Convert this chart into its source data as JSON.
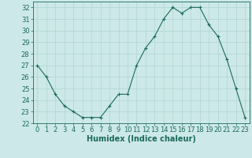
{
  "x": [
    0,
    1,
    2,
    3,
    4,
    5,
    6,
    7,
    8,
    9,
    10,
    11,
    12,
    13,
    14,
    15,
    16,
    17,
    18,
    19,
    20,
    21,
    22,
    23
  ],
  "y": [
    27,
    26,
    24.5,
    23.5,
    23,
    22.5,
    22.5,
    22.5,
    23.5,
    24.5,
    24.5,
    27,
    28.5,
    29.5,
    31,
    32,
    31.5,
    32,
    32,
    30.5,
    29.5,
    27.5,
    25,
    22.5
  ],
  "line_color": "#1a6b5a",
  "marker": "+",
  "marker_color": "#1a6b5a",
  "bg_color": "#cde8e8",
  "grid_color": "#b0d4d4",
  "xlabel": "Humidex (Indice chaleur)",
  "xlabel_fontsize": 7,
  "tick_fontsize": 6,
  "ylim": [
    22,
    32.5
  ],
  "yticks": [
    22,
    23,
    24,
    25,
    26,
    27,
    28,
    29,
    30,
    31,
    32
  ],
  "xlim": [
    -0.5,
    23.5
  ],
  "xticks": [
    0,
    1,
    2,
    3,
    4,
    5,
    6,
    7,
    8,
    9,
    10,
    11,
    12,
    13,
    14,
    15,
    16,
    17,
    18,
    19,
    20,
    21,
    22,
    23
  ]
}
